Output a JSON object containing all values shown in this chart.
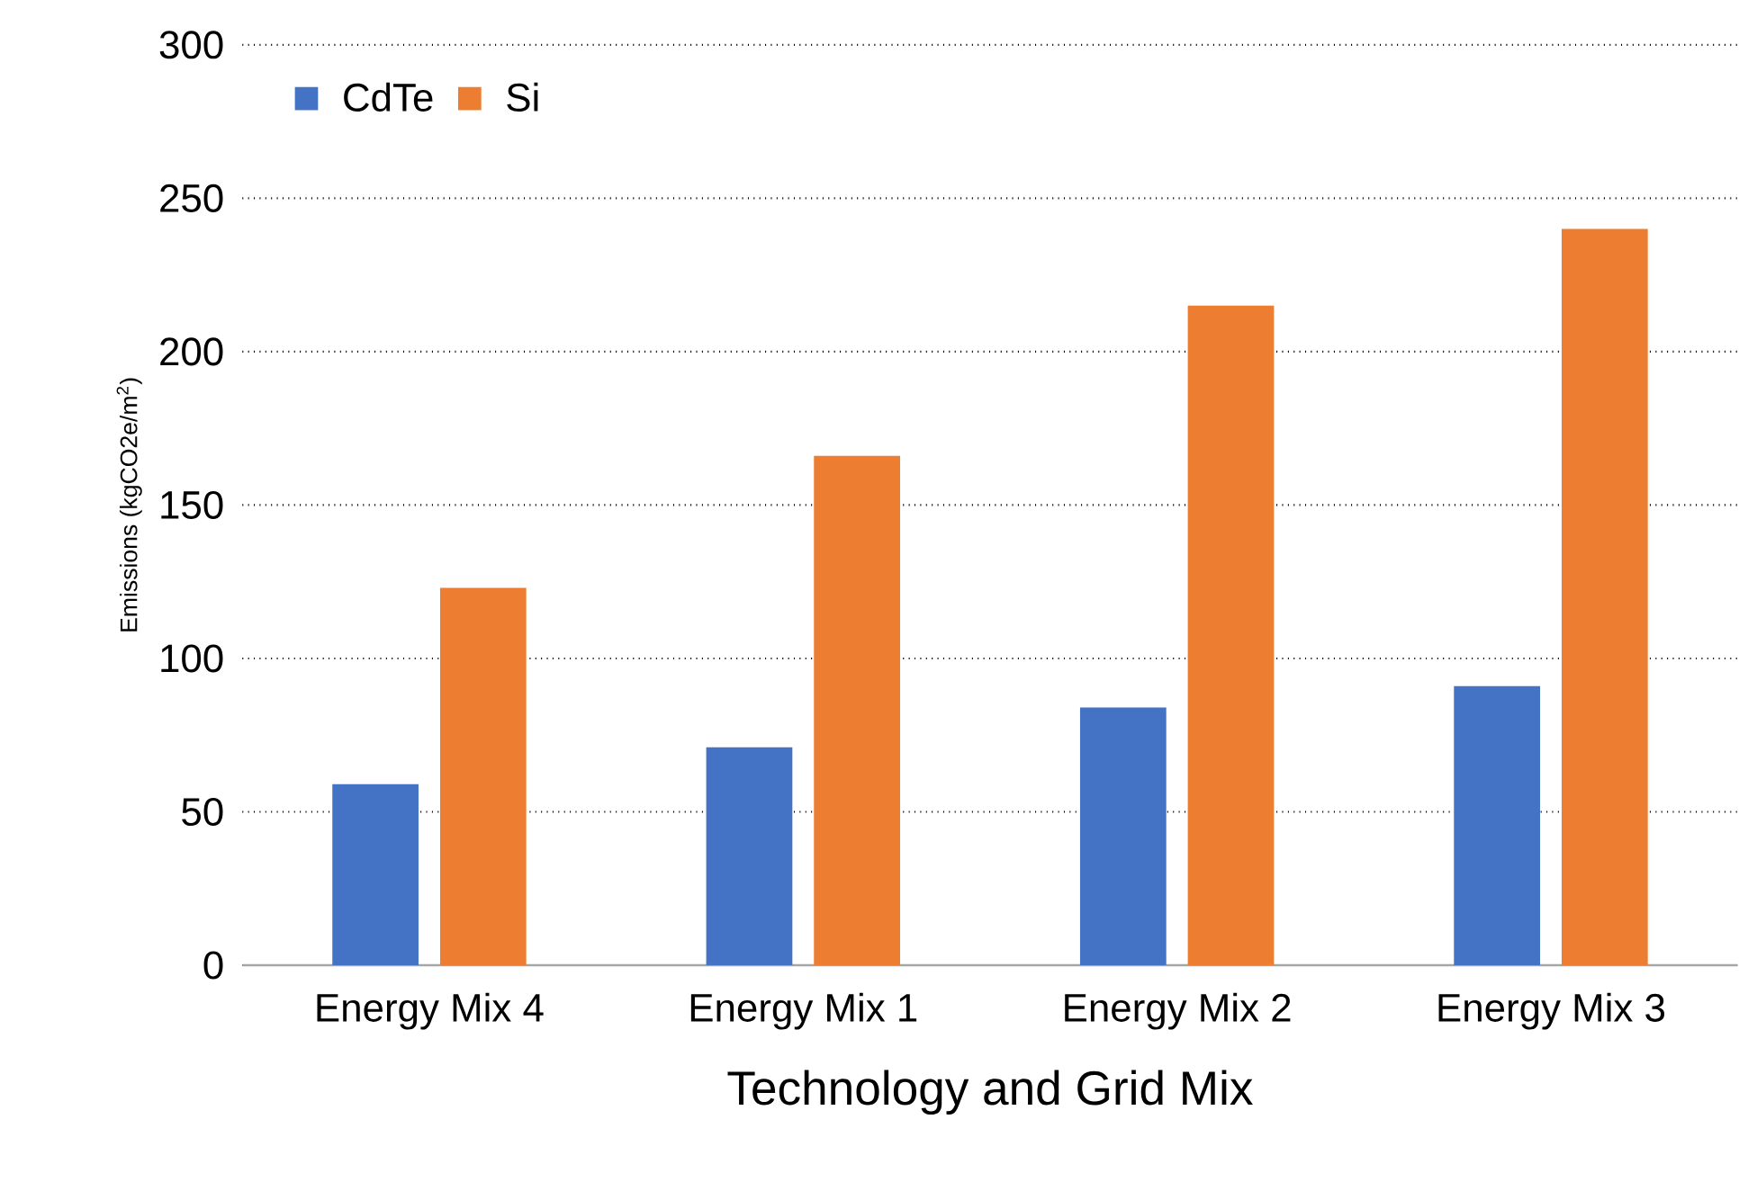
{
  "chart_data": {
    "type": "bar",
    "xlabel": "Technology and Grid Mix",
    "ylabel": "Emissions (kgCO2e/m$^{2}$)",
    "categories": [
      "Energy Mix 4",
      "Energy Mix 1",
      "Energy Mix 2",
      "Energy Mix 3"
    ],
    "series": [
      {
        "name": "CdTe",
        "color": "#4472c4",
        "values": [
          59,
          71,
          84,
          91
        ]
      },
      {
        "name": "Si",
        "color": "#ed7d31",
        "values": [
          123,
          166,
          215,
          240
        ]
      }
    ],
    "ylim": [
      0,
      300
    ],
    "yticks": [
      0,
      50,
      100,
      150,
      200,
      250,
      300
    ],
    "grid": "y",
    "legend": "top left"
  }
}
